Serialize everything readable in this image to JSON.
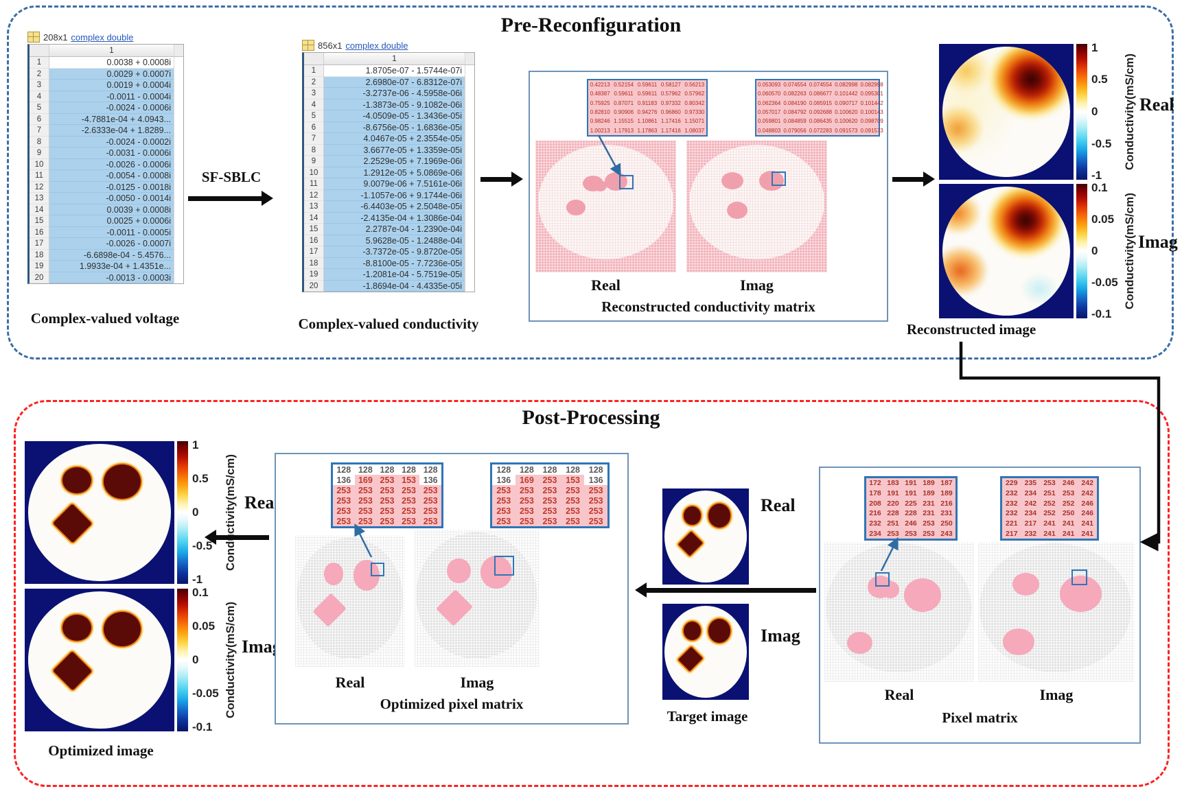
{
  "pre": {
    "title": "Pre-Reconfiguration",
    "voltage_table": {
      "dims": "208x1",
      "type_link": "complex double",
      "col": "1",
      "rows": [
        [
          "1",
          "0.0038 + 0.0008i"
        ],
        [
          "2",
          "0.0029 + 0.0007i"
        ],
        [
          "3",
          "0.0019 + 0.0004i"
        ],
        [
          "4",
          "-0.0011 - 0.0004i"
        ],
        [
          "5",
          "-0.0024 - 0.0006i"
        ],
        [
          "6",
          "-4.7881e-04 + 4.0943..."
        ],
        [
          "7",
          "-2.6333e-04 + 1.8289..."
        ],
        [
          "8",
          "-0.0024 - 0.0002i"
        ],
        [
          "9",
          "-0.0031 - 0.0006i"
        ],
        [
          "10",
          "-0.0026 - 0.0006i"
        ],
        [
          "11",
          "-0.0054 - 0.0008i"
        ],
        [
          "12",
          "-0.0125 - 0.0018i"
        ],
        [
          "13",
          "-0.0050 - 0.0014i"
        ],
        [
          "14",
          "0.0039 + 0.0008i"
        ],
        [
          "15",
          "0.0025 + 0.0006i"
        ],
        [
          "16",
          "-0.0011 - 0.0005i"
        ],
        [
          "17",
          "-0.0026 - 0.0007i"
        ],
        [
          "18",
          "-6.6898e-04 - 5.4576..."
        ],
        [
          "19",
          "1.9933e-04 + 1.4351e..."
        ],
        [
          "20",
          "-0.0013 - 0.0003i"
        ]
      ]
    },
    "voltage_caption": "Complex-valued voltage",
    "sf_sblc": "SF-SBLC",
    "conductivity_table": {
      "dims": "856x1",
      "type_link": "complex double",
      "col": "1",
      "rows": [
        [
          "1",
          "1.8705e-07 - 1.5744e-07i"
        ],
        [
          "2",
          "2.6980e-07 - 6.8312e-07i"
        ],
        [
          "3",
          "-3.2737e-06 - 4.5958e-06i"
        ],
        [
          "4",
          "-1.3873e-05 - 9.1082e-06i"
        ],
        [
          "5",
          "-4.0509e-05 - 1.3436e-05i"
        ],
        [
          "6",
          "-8.6756e-05 - 1.6836e-05i"
        ],
        [
          "7",
          "4.0467e-05 + 2.3554e-05i"
        ],
        [
          "8",
          "3.6677e-05 + 1.3359e-05i"
        ],
        [
          "9",
          "2.2529e-05 + 7.1969e-06i"
        ],
        [
          "10",
          "1.2912e-05 + 5.0869e-06i"
        ],
        [
          "11",
          "9.0079e-06 + 7.5161e-06i"
        ],
        [
          "12",
          "-1.1057e-06 + 9.1744e-06i"
        ],
        [
          "13",
          "-6.4403e-05 + 2.5048e-05i"
        ],
        [
          "14",
          "-2.4135e-04 + 1.3086e-04i"
        ],
        [
          "15",
          "2.2787e-04 - 1.2390e-04i"
        ],
        [
          "16",
          "5.9628e-05 - 1.2488e-04i"
        ],
        [
          "17",
          "-3.7372e-05 - 9.8720e-05i"
        ],
        [
          "18",
          "-8.8100e-05 - 7.7236e-05i"
        ],
        [
          "19",
          "-1.2081e-04 - 5.7519e-05i"
        ],
        [
          "20",
          "-1.8694e-04 - 4.4335e-05i"
        ]
      ]
    },
    "conductivity_caption": "Complex-valued conductivity",
    "recon_matrix": {
      "title": "Reconstructed conductivity matrix",
      "real_label": "Real",
      "imag_label": "Imag",
      "real_zoom": [
        [
          "0.42213",
          "0.52154",
          "0.59611",
          "0.58127",
          "0.56213"
        ],
        [
          "0.48387",
          "0.59611",
          "0.59611",
          "0.57962",
          "0.57962"
        ],
        [
          "0.75925",
          "0.87071",
          "0.91183",
          "0.97332",
          "0.80342"
        ],
        [
          "0.82810",
          "0.90906",
          "0.94276",
          "0.96860",
          "0.97330"
        ],
        [
          "0.98246",
          "1.15515",
          "1.10861",
          "1.17416",
          "1.15071"
        ],
        [
          "1.00213",
          "1.17913",
          "1.17863",
          "1.17416",
          "1.08037"
        ]
      ],
      "imag_zoom": [
        [
          "0.053093",
          "0.074554",
          "0.074554",
          "0.082998",
          "0.082998"
        ],
        [
          "0.060570",
          "0.082263",
          "0.086677",
          "0.101442",
          "0.095301"
        ],
        [
          "0.062364",
          "0.084190",
          "0.085915",
          "0.090717",
          "0.101442"
        ],
        [
          "0.057017",
          "0.084792",
          "0.092688",
          "0.100620",
          "0.100143"
        ],
        [
          "0.059801",
          "0.084859",
          "0.086435",
          "0.100620",
          "0.098709"
        ],
        [
          "0.048803",
          "0.079056",
          "0.072283",
          "0.091573",
          "0.091573"
        ]
      ]
    },
    "recon_image": {
      "caption": "Reconstructed image",
      "real_label": "Real",
      "imag_label": "Imag",
      "unit": "Conductivity(mS/cm)",
      "real_ticks": [
        "1",
        "0.5",
        "0",
        "-0.5",
        "-1"
      ],
      "imag_ticks": [
        "0.1",
        "0.05",
        "0",
        "-0.05",
        "-0.1"
      ]
    }
  },
  "post": {
    "title": "Post-Processing",
    "optimized_image": {
      "caption": "Optimized image",
      "real_label": "Real",
      "imag_label": "Imag",
      "unit": "Conductivity(mS/cm)",
      "real_ticks": [
        "1",
        "0.5",
        "0",
        "-0.5",
        "-1"
      ],
      "imag_ticks": [
        "0.1",
        "0.05",
        "0",
        "-0.05",
        "-0.1"
      ]
    },
    "optimized_pixel_matrix": {
      "title": "Optimized pixel matrix",
      "real_label": "Real",
      "imag_label": "Imag",
      "real_zoom": {
        "values": [
          [
            "128",
            "128",
            "128",
            "128",
            "128"
          ],
          [
            "136",
            "169",
            "253",
            "153",
            "136"
          ],
          [
            "253",
            "253",
            "253",
            "253",
            "253"
          ],
          [
            "253",
            "253",
            "253",
            "253",
            "253"
          ],
          [
            "253",
            "253",
            "253",
            "253",
            "253"
          ],
          [
            "253",
            "253",
            "253",
            "253",
            "253"
          ]
        ],
        "mask": [
          [
            0,
            0,
            0,
            0,
            0
          ],
          [
            0,
            1,
            1,
            1,
            0
          ],
          [
            1,
            1,
            1,
            1,
            1
          ],
          [
            1,
            1,
            1,
            1,
            1
          ],
          [
            1,
            1,
            1,
            1,
            1
          ],
          [
            1,
            1,
            1,
            1,
            1
          ]
        ]
      },
      "imag_zoom": {
        "values": [
          [
            "128",
            "128",
            "128",
            "128",
            "128"
          ],
          [
            "136",
            "169",
            "253",
            "153",
            "136"
          ],
          [
            "253",
            "253",
            "253",
            "253",
            "253"
          ],
          [
            "253",
            "253",
            "253",
            "253",
            "253"
          ],
          [
            "253",
            "253",
            "253",
            "253",
            "253"
          ],
          [
            "253",
            "253",
            "253",
            "253",
            "253"
          ]
        ],
        "mask": [
          [
            0,
            0,
            0,
            0,
            0
          ],
          [
            0,
            1,
            1,
            1,
            0
          ],
          [
            1,
            1,
            1,
            1,
            1
          ],
          [
            1,
            1,
            1,
            1,
            1
          ],
          [
            1,
            1,
            1,
            1,
            1
          ],
          [
            1,
            1,
            1,
            1,
            1
          ]
        ]
      }
    },
    "target_image": {
      "caption": "Target image",
      "real_label": "Real",
      "imag_label": "Imag"
    },
    "pixel_matrix": {
      "title": "Pixel matrix",
      "real_label": "Real",
      "imag_label": "Imag",
      "real_zoom": [
        [
          "172",
          "183",
          "191",
          "189",
          "187"
        ],
        [
          "178",
          "191",
          "191",
          "189",
          "189"
        ],
        [
          "208",
          "220",
          "225",
          "231",
          "216"
        ],
        [
          "216",
          "228",
          "228",
          "231",
          "231"
        ],
        [
          "232",
          "251",
          "246",
          "253",
          "250"
        ],
        [
          "234",
          "253",
          "253",
          "253",
          "243"
        ]
      ],
      "imag_zoom": [
        [
          "229",
          "235",
          "253",
          "246",
          "242"
        ],
        [
          "232",
          "234",
          "251",
          "253",
          "242"
        ],
        [
          "232",
          "242",
          "252",
          "252",
          "246"
        ],
        [
          "232",
          "234",
          "252",
          "250",
          "246"
        ],
        [
          "221",
          "217",
          "241",
          "241",
          "241"
        ],
        [
          "217",
          "232",
          "241",
          "241",
          "241"
        ]
      ]
    }
  },
  "colors": {
    "pre_border": "#3c6ea5",
    "post_border": "#ff2020",
    "inner_border": "#2e75b6",
    "navy_bg": "#0a1173",
    "pink_table": "#f8c6ca",
    "selection_blue": "#abd1ec",
    "link_blue": "#2558b8"
  }
}
